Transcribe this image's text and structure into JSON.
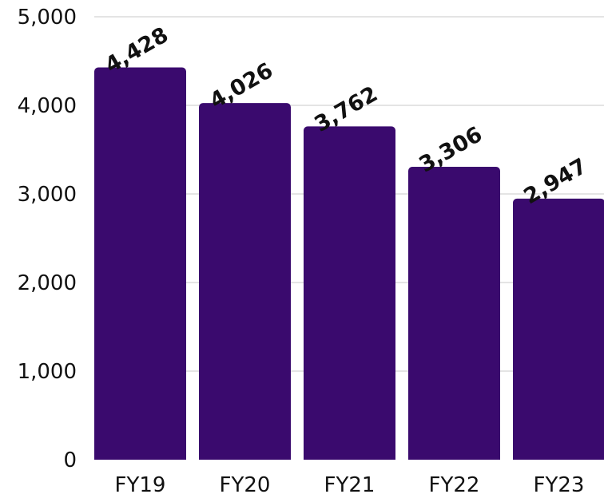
{
  "chart_data": {
    "type": "bar",
    "categories": [
      "FY19",
      "FY20",
      "FY21",
      "FY22",
      "FY23"
    ],
    "values": [
      4428,
      4026,
      3762,
      3306,
      2947
    ],
    "data_labels": [
      "4,428",
      "4,026",
      "3,762",
      "3,306",
      "2,947"
    ],
    "title": "",
    "xlabel": "",
    "ylabel": "",
    "ylim": [
      0,
      5000
    ],
    "yticks": [
      0,
      1000,
      2000,
      3000,
      4000,
      5000
    ],
    "ytick_labels": [
      "0",
      "1,000",
      "2,000",
      "3,000",
      "4,000",
      "5,000"
    ],
    "grid": true,
    "legend": "none",
    "bar_color": "#3a0a6e",
    "label_rotation_deg": -30
  }
}
